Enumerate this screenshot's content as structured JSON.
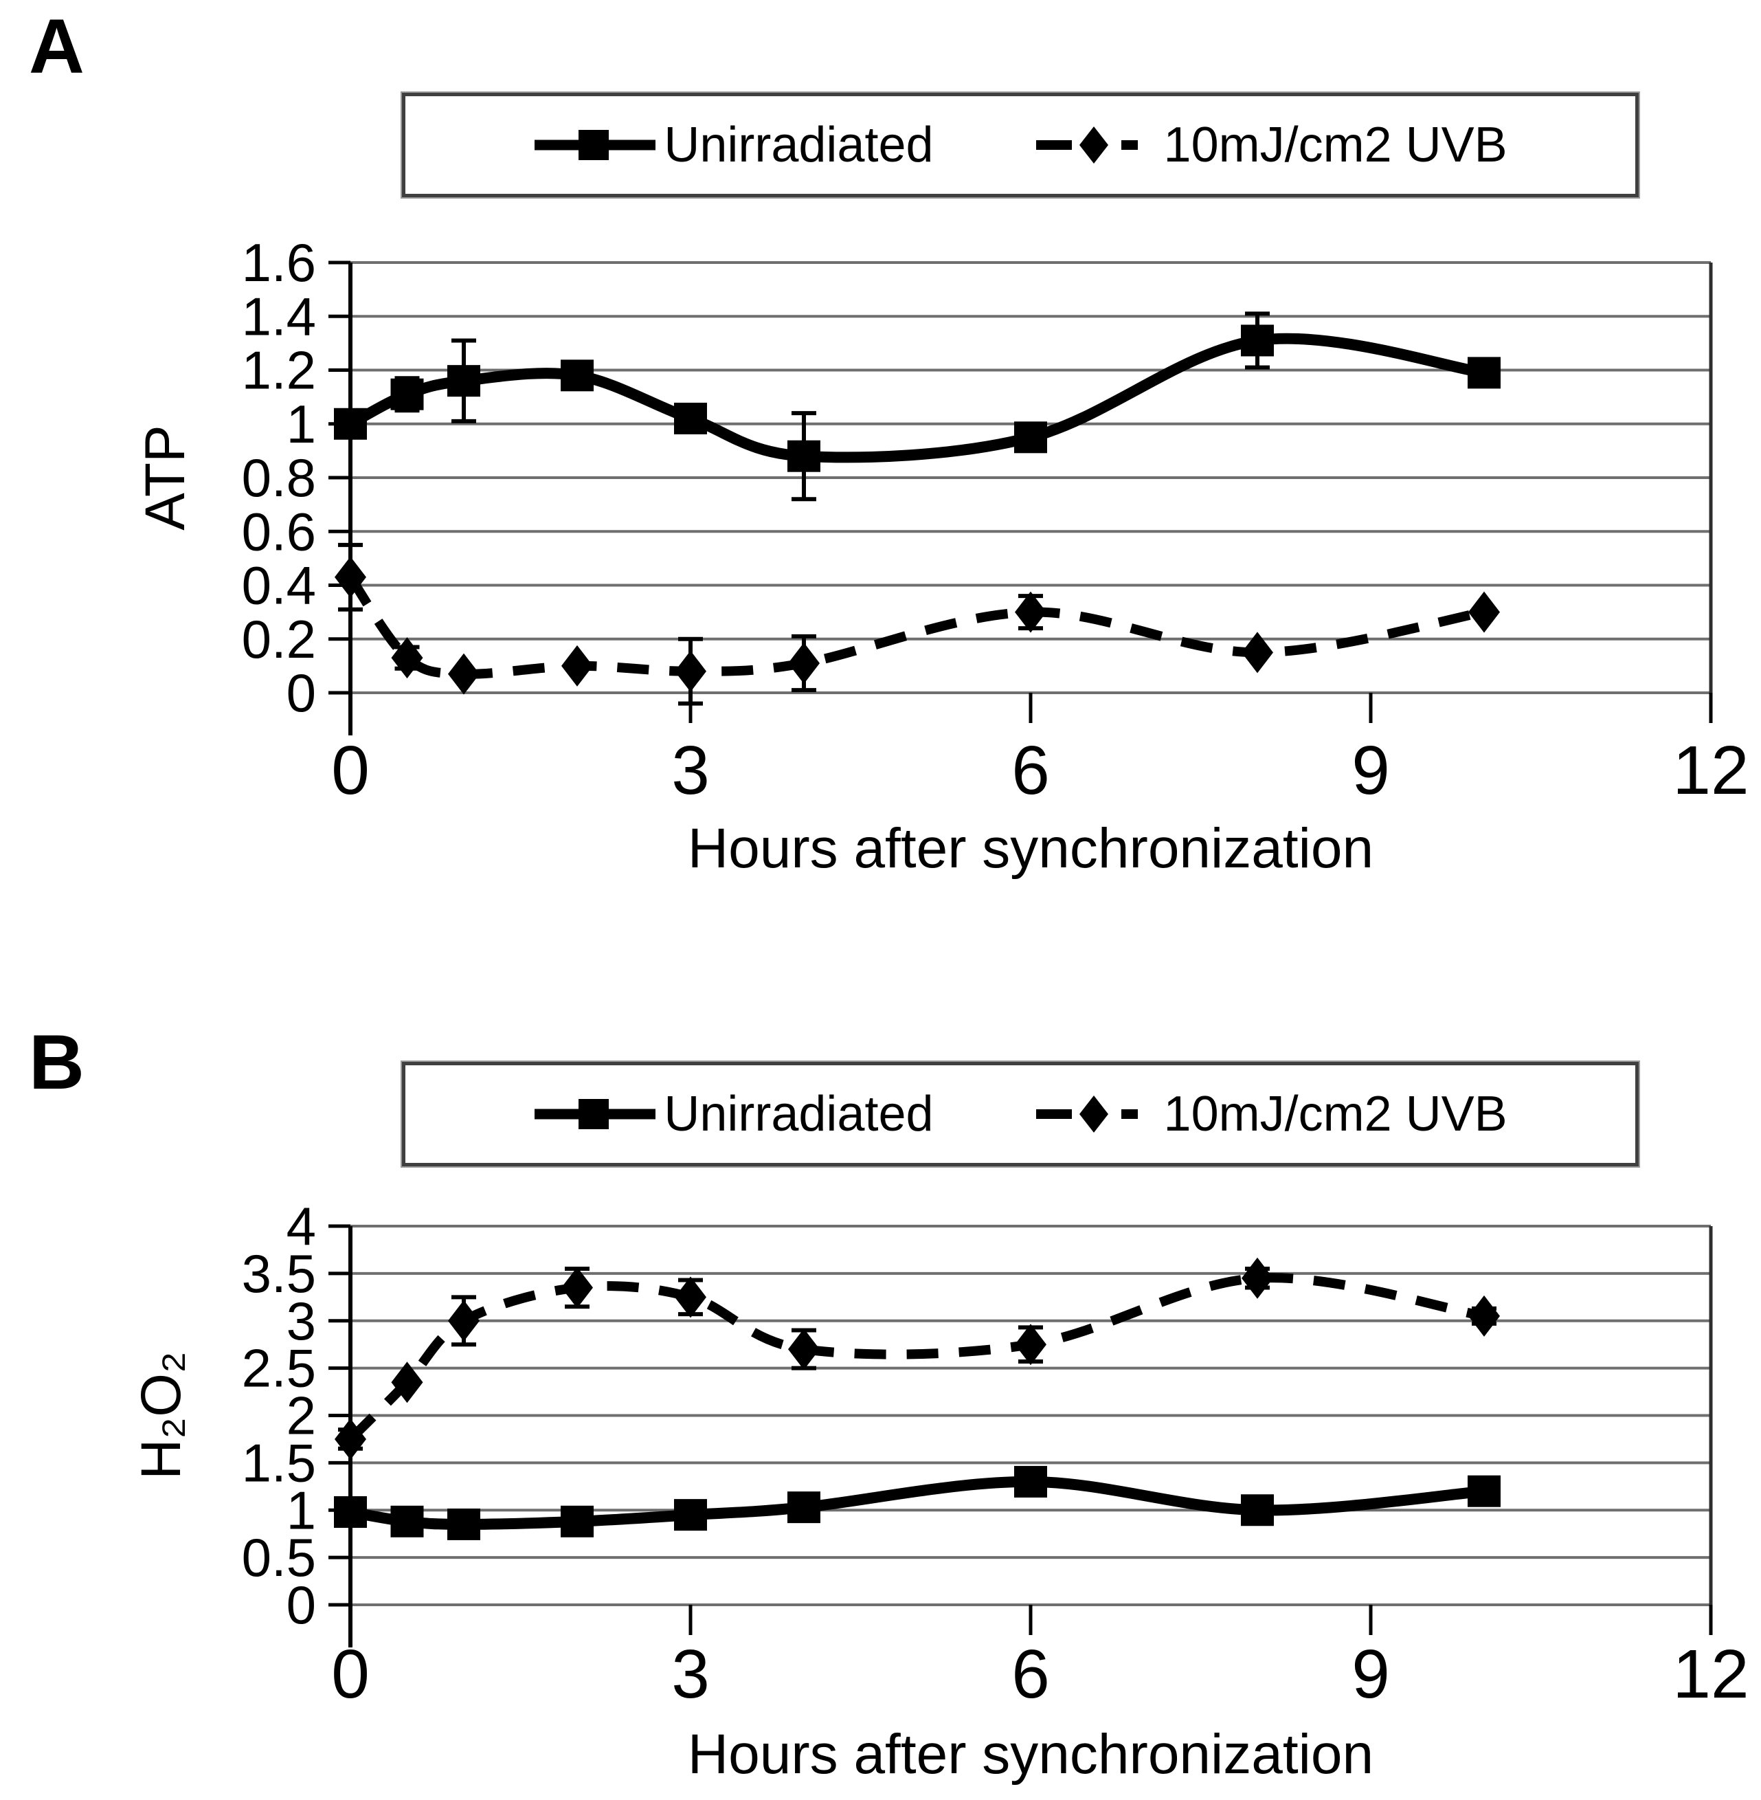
{
  "figure": {
    "background": "#ffffff",
    "line_color": "#000000",
    "gridline_color": "#6f6f6f"
  },
  "chart_data": [
    {
      "panel_label": "A",
      "type": "line",
      "title": "",
      "xlabel": "Hours after synchronization",
      "ylabel": "ATP",
      "xlim": [
        0,
        12
      ],
      "ylim": [
        0,
        1.6
      ],
      "grid": "horizontal",
      "legend_position": "top",
      "xtick_values": [
        0,
        3,
        6,
        9,
        12
      ],
      "xtick_labels": [
        "0",
        "3",
        "6",
        "9",
        "12"
      ],
      "ytick_values": [
        0,
        0.2,
        0.4,
        0.6,
        0.8,
        1.0,
        1.2,
        1.4,
        1.6
      ],
      "ytick_labels": [
        "0",
        "0.2",
        "0.4",
        "0.6",
        "0.8",
        "1",
        "1.2",
        "1.4",
        "1.6"
      ],
      "x": [
        0,
        0.5,
        1,
        2,
        3,
        4,
        6,
        8,
        10
      ],
      "series": [
        {
          "name": "Unirradiated",
          "marker": "square",
          "line_style": "solid",
          "values": [
            1.0,
            1.11,
            1.16,
            1.18,
            1.02,
            0.88,
            0.95,
            1.31,
            1.19
          ],
          "errors": [
            0,
            0.06,
            0.15,
            0,
            0,
            0.16,
            0,
            0.1,
            0
          ]
        },
        {
          "name": "10mJ/cm2 UVB",
          "marker": "diamond",
          "line_style": "dashed",
          "values": [
            0.43,
            0.13,
            0.07,
            0.1,
            0.08,
            0.11,
            0.3,
            0.15,
            0.3
          ],
          "errors": [
            0.12,
            0.04,
            0,
            0,
            0.12,
            0.1,
            0.06,
            0,
            0
          ]
        }
      ]
    },
    {
      "panel_label": "B",
      "type": "line",
      "title": "",
      "xlabel": "Hours after synchronization",
      "ylabel": "H₂O₂",
      "xlim": [
        0,
        12
      ],
      "ylim": [
        0,
        4
      ],
      "grid": "horizontal",
      "legend_position": "top",
      "xtick_values": [
        0,
        3,
        6,
        9,
        12
      ],
      "xtick_labels": [
        "0",
        "3",
        "6",
        "9",
        "12"
      ],
      "ytick_values": [
        0,
        0.5,
        1.0,
        1.5,
        2.0,
        2.5,
        3.0,
        3.5,
        4.0
      ],
      "ytick_labels": [
        "0",
        "0.5",
        "1",
        "1.5",
        "2",
        "2.5",
        "3",
        "3.5",
        "4"
      ],
      "x": [
        0,
        0.5,
        1,
        2,
        3,
        4,
        6,
        8,
        10
      ],
      "series": [
        {
          "name": "Unirradiated",
          "marker": "square",
          "line_style": "solid",
          "values": [
            0.98,
            0.88,
            0.85,
            0.88,
            0.95,
            1.03,
            1.3,
            1.0,
            1.2
          ],
          "errors": [
            0,
            0,
            0,
            0,
            0,
            0,
            0.08,
            0,
            0
          ]
        },
        {
          "name": "10mJ/cm2 UVB",
          "marker": "diamond",
          "line_style": "dashed",
          "values": [
            1.75,
            2.35,
            3.0,
            3.35,
            3.25,
            2.7,
            2.75,
            3.45,
            3.05
          ],
          "errors": [
            0.1,
            0,
            0.25,
            0.2,
            0.18,
            0.2,
            0.18,
            0.1,
            0.08
          ]
        }
      ]
    }
  ]
}
